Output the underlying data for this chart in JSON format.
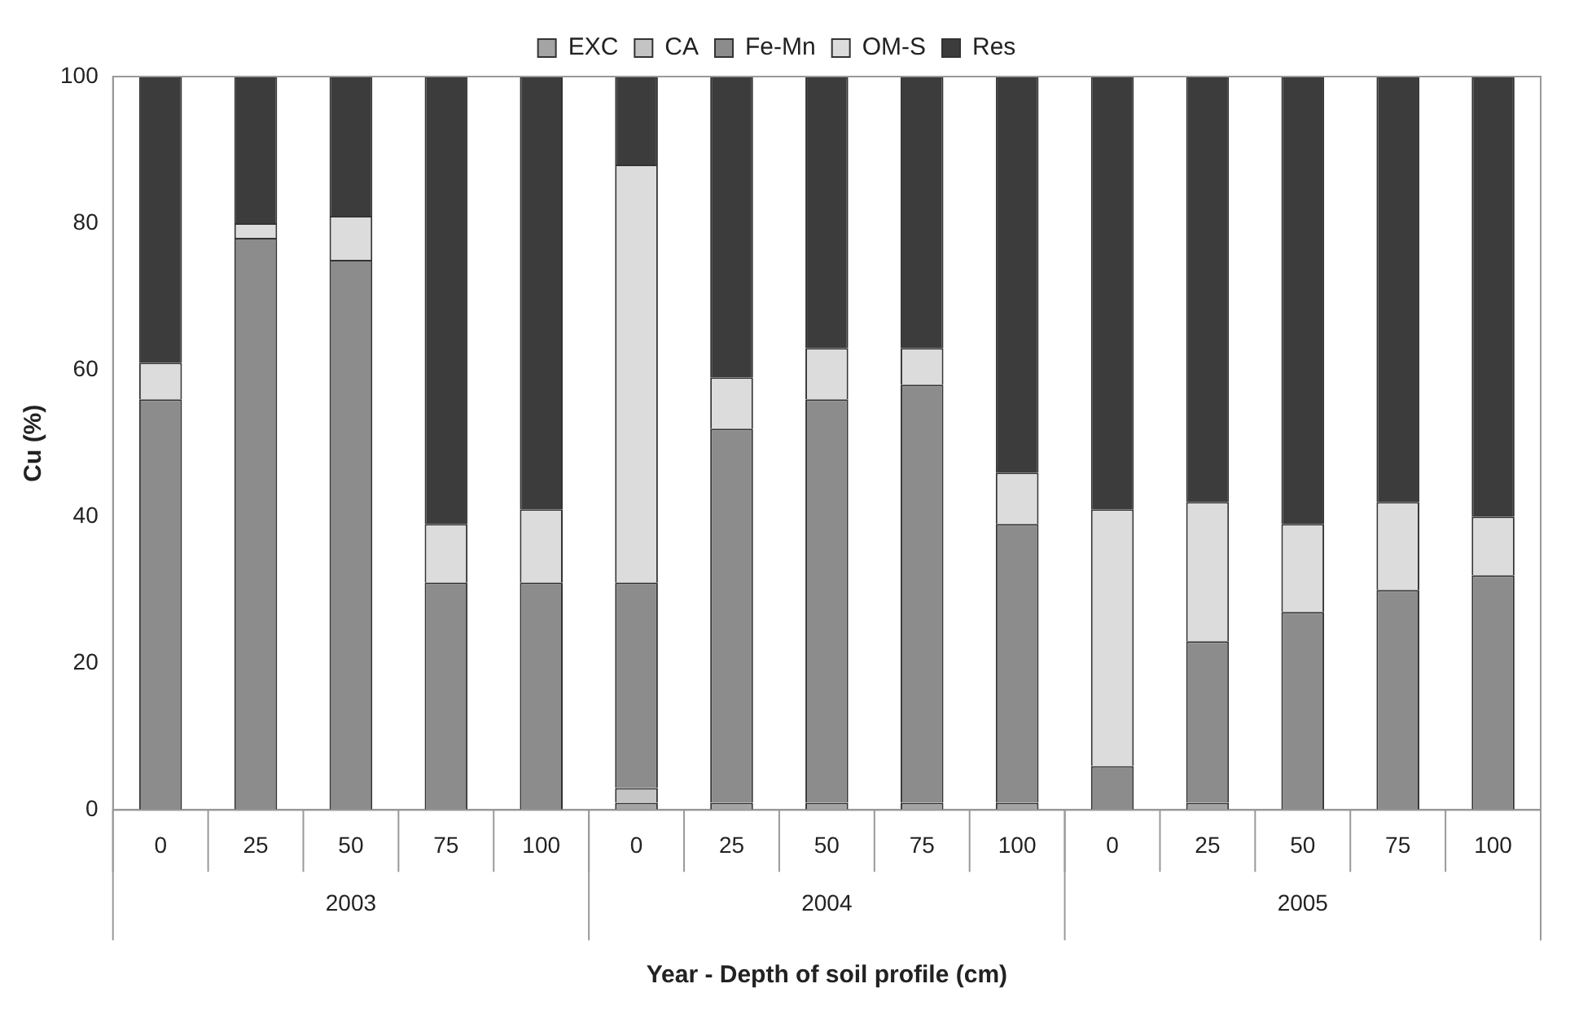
{
  "chart_data": {
    "type": "bar",
    "stacked": true,
    "xlabel": "Year - Depth of soil profile (cm)",
    "ylabel": "Cu (%)",
    "categories": [
      "0",
      "25",
      "50",
      "75",
      "100",
      "0",
      "25",
      "50",
      "75",
      "100",
      "0",
      "25",
      "50",
      "75",
      "100"
    ],
    "annotations": [
      "2003",
      "2004",
      "2005"
    ],
    "series": [
      {
        "name": "EXC",
        "color": "#a4a4a4",
        "values": [
          0,
          0,
          0,
          0,
          0,
          1,
          1,
          1,
          1,
          1,
          0,
          1,
          0,
          0,
          0
        ]
      },
      {
        "name": "CA",
        "color": "#c4c4c4",
        "values": [
          0,
          0,
          0,
          0,
          0,
          2,
          0,
          0,
          0,
          0,
          0,
          0,
          0,
          0,
          0
        ]
      },
      {
        "name": "Fe-Mn",
        "color": "#8c8c8c",
        "values": [
          56,
          78,
          75,
          31,
          31,
          28,
          51,
          55,
          57,
          38,
          6,
          22,
          27,
          30,
          32
        ]
      },
      {
        "name": "OM-S",
        "color": "#dcdcdc",
        "values": [
          5,
          2,
          6,
          8,
          10,
          57,
          7,
          7,
          5,
          7,
          35,
          19,
          12,
          12,
          8
        ]
      },
      {
        "name": "Res",
        "color": "#3c3c3c",
        "values": [
          39,
          20,
          19,
          61,
          59,
          12,
          41,
          37,
          37,
          54,
          59,
          58,
          61,
          58,
          60
        ]
      }
    ],
    "ylim": [
      0,
      100
    ],
    "yticks": [
      0,
      20,
      40,
      60,
      80,
      100
    ],
    "grid": false,
    "legend": "top"
  }
}
